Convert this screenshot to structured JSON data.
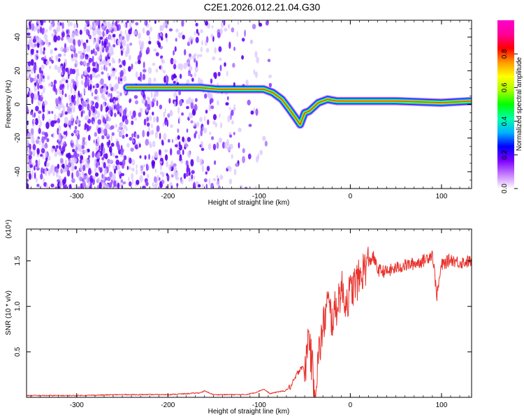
{
  "title": "C2E1.2026.012.21.04.G30",
  "chart_data": [
    {
      "type": "heatmap",
      "xlabel": "Height of straight line (km)",
      "ylabel": "Frequency (Hz)",
      "xlim": [
        -355,
        133
      ],
      "ylim": [
        -50,
        50
      ],
      "x_ticks": [
        "-300",
        "-200",
        "-100",
        "0",
        "100"
      ],
      "x_tick_values": [
        -300,
        -200,
        -100,
        0,
        100
      ],
      "y_ticks": [
        "-40",
        "-20",
        "0",
        "20",
        "40"
      ],
      "y_tick_values": [
        -40,
        -20,
        0,
        20,
        40
      ],
      "colorbar": {
        "label": "Normalized spectral amplitude",
        "range": [
          0,
          1
        ],
        "ticks": [
          "0.0",
          "0.2",
          "0.4",
          "0.6",
          "0.8"
        ],
        "tick_values": [
          0,
          0.2,
          0.4,
          0.6,
          0.8
        ],
        "colors": [
          "#ffffff",
          "#c77dff",
          "#7b00ff",
          "#0000ff",
          "#00b4ff",
          "#00ffaa",
          "#00ff00",
          "#aaff00",
          "#ffff00",
          "#ff9900",
          "#ff0000",
          "#ff0099",
          "#ff00cc"
        ]
      },
      "ridge": {
        "x": [
          -245,
          -225,
          -205,
          -185,
          -165,
          -145,
          -125,
          -105,
          -95,
          -85,
          -75,
          -68,
          -60,
          -55,
          -50,
          -45,
          -35,
          -25,
          -15,
          0,
          50,
          100,
          133
        ],
        "y": [
          10,
          10,
          10,
          10,
          10,
          9,
          9,
          9,
          9,
          7,
          3,
          -2,
          -8,
          -12,
          -5,
          -4,
          1,
          3,
          2,
          2,
          2,
          1,
          2
        ]
      }
    },
    {
      "type": "line",
      "xlabel": "Height of straight line (km)",
      "ylabel": "SNR (10 * v/v)",
      "y_multiplier": "(x10⁴)",
      "xlim": [
        -355,
        133
      ],
      "ylim": [
        0,
        1.85
      ],
      "x_ticks": [
        "-300",
        "-200",
        "-100",
        "0",
        "100"
      ],
      "x_tick_values": [
        -300,
        -200,
        -100,
        0,
        100
      ],
      "y_ticks": [
        "0.5",
        "1.0",
        "1.5"
      ],
      "y_tick_values": [
        0.5,
        1.0,
        1.5
      ],
      "line_color": "#e8312b",
      "series": [
        {
          "x": [
            -355,
            -300,
            -250,
            -220,
            -200,
            -180,
            -165,
            -160,
            -150,
            -130,
            -115,
            -105,
            -95,
            -88,
            -80,
            -72,
            -65,
            -60,
            -55,
            -52,
            -50,
            -47,
            -45,
            -43,
            -40,
            -38,
            -35,
            -30,
            -25,
            -20,
            -15,
            -10,
            -5,
            0,
            5,
            10,
            15,
            20,
            25,
            30,
            40,
            50,
            60,
            70,
            80,
            90,
            95,
            100,
            110,
            120,
            133
          ],
          "y": [
            0.02,
            0.02,
            0.03,
            0.03,
            0.03,
            0.04,
            0.05,
            0.07,
            0.03,
            0.03,
            0.03,
            0.05,
            0.09,
            0.04,
            0.06,
            0.07,
            0.12,
            0.22,
            0.32,
            0.35,
            0.2,
            0.6,
            0.7,
            0.42,
            0.2,
            0.1,
            0.45,
            0.75,
            1.05,
            0.85,
            1.0,
            1.2,
            1.05,
            1.15,
            1.25,
            1.3,
            1.42,
            1.48,
            1.55,
            1.4,
            1.38,
            1.42,
            1.45,
            1.47,
            1.5,
            1.58,
            1.12,
            1.45,
            1.52,
            1.48,
            1.5
          ]
        }
      ]
    }
  ]
}
